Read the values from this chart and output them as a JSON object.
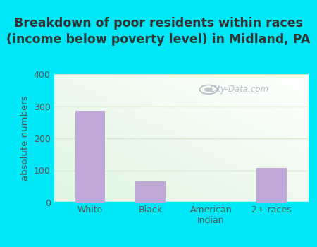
{
  "title": "Breakdown of poor residents within races\n(income below poverty level) in Midland, PA",
  "categories": [
    "White",
    "Black",
    "American\nIndian",
    "2+ races"
  ],
  "values": [
    285,
    67,
    0,
    107
  ],
  "bar_color": "#c0a8d8",
  "ylabel": "absolute numbers",
  "ylim": [
    0,
    400
  ],
  "yticks": [
    0,
    100,
    200,
    300,
    400
  ],
  "bg_outer": "#00e8f8",
  "title_fontsize": 12.5,
  "axis_label_fontsize": 9.5,
  "tick_fontsize": 9,
  "bar_width": 0.5,
  "grid_color": "#d8e8d0",
  "watermark_text": "City-Data.com",
  "title_color": "#333333",
  "tick_color": "#555555"
}
